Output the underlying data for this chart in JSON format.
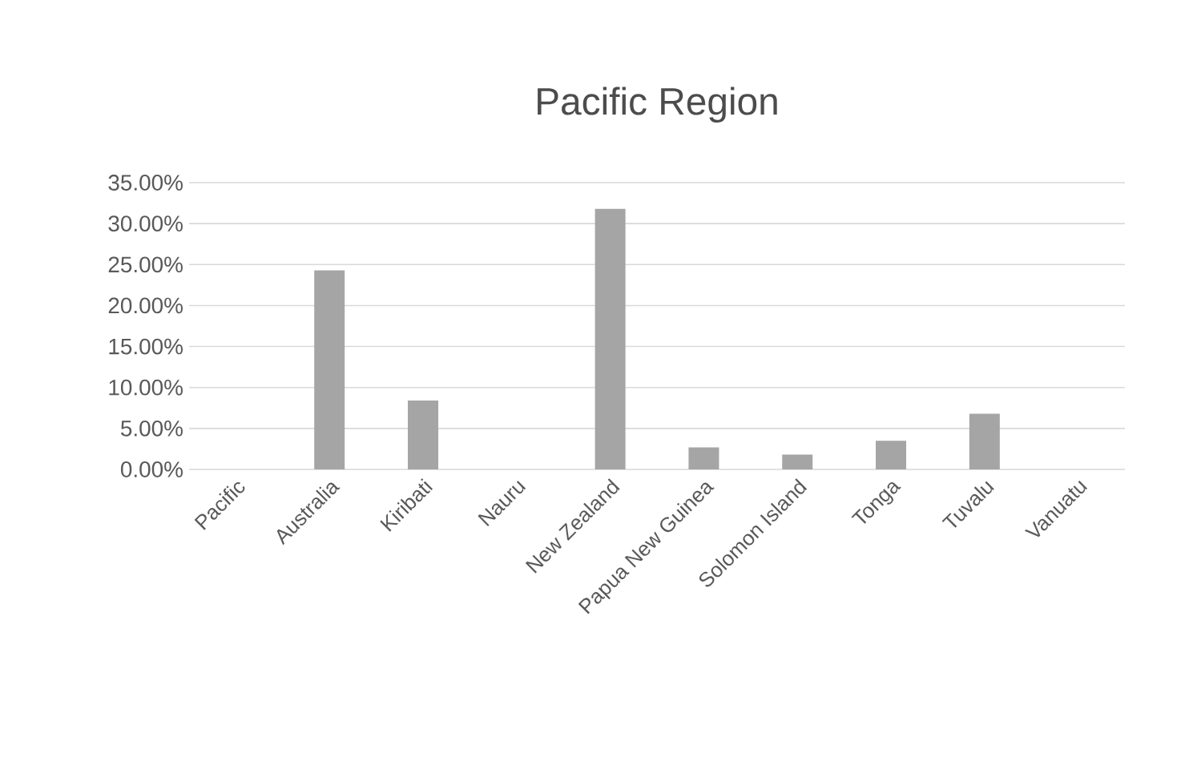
{
  "chart_data": {
    "type": "bar",
    "title": "Pacific Region",
    "categories": [
      "Pacific",
      "Australia",
      "Kiribati",
      "Nauru",
      "New Zealand",
      "Papua New Guinea",
      "Solomon Island",
      "Tonga",
      "Tuvalu",
      "Vanuatu"
    ],
    "values": [
      0,
      24.3,
      8.4,
      0,
      31.8,
      2.7,
      1.8,
      3.5,
      6.8,
      0
    ],
    "color": "#a5a5a5",
    "ylim": [
      0,
      35
    ],
    "yticks": [
      {
        "value": 0,
        "label": "0.00%"
      },
      {
        "value": 5,
        "label": "5.00%"
      },
      {
        "value": 10,
        "label": "10.00%"
      },
      {
        "value": 15,
        "label": "15.00%"
      },
      {
        "value": 20,
        "label": "20.00%"
      },
      {
        "value": 25,
        "label": "25.00%"
      },
      {
        "value": 30,
        "label": "30.00%"
      },
      {
        "value": 35,
        "label": "35.00%"
      }
    ],
    "grid": "y"
  }
}
